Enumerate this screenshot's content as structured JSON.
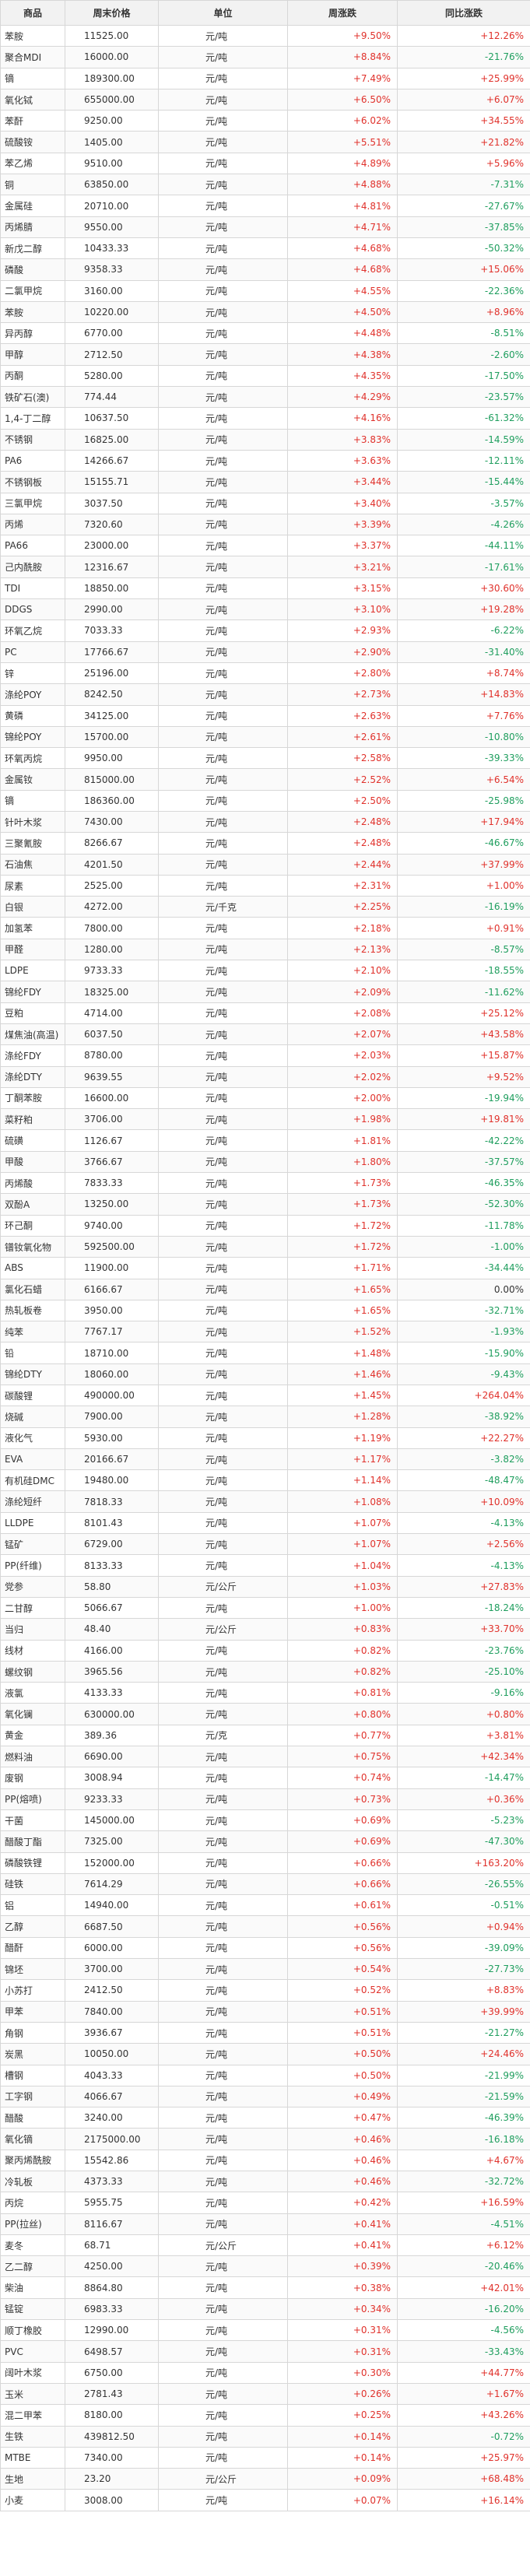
{
  "colors": {
    "up": "#e0312b",
    "down": "#1f9e5e",
    "flat": "#333333"
  },
  "headers": {
    "name": "商品",
    "price": "周末价格",
    "unit": "单位",
    "week": "周涨跌",
    "yoy": "同比涨跌"
  },
  "rows": [
    {
      "name": "苯胺",
      "price": "11525.00",
      "unit": "元/吨",
      "week": "+9.50%",
      "yoy": "+12.26%"
    },
    {
      "name": "聚合MDI",
      "price": "16000.00",
      "unit": "元/吨",
      "week": "+8.84%",
      "yoy": "-21.76%"
    },
    {
      "name": "镝",
      "price": "189300.00",
      "unit": "元/吨",
      "week": "+7.49%",
      "yoy": "+25.99%"
    },
    {
      "name": "氧化铽",
      "price": "655000.00",
      "unit": "元/吨",
      "week": "+6.50%",
      "yoy": "+6.07%"
    },
    {
      "name": "苯酐",
      "price": "9250.00",
      "unit": "元/吨",
      "week": "+6.02%",
      "yoy": "+34.55%"
    },
    {
      "name": "硫酸铵",
      "price": "1405.00",
      "unit": "元/吨",
      "week": "+5.51%",
      "yoy": "+21.82%"
    },
    {
      "name": "苯乙烯",
      "price": "9510.00",
      "unit": "元/吨",
      "week": "+4.89%",
      "yoy": "+5.96%"
    },
    {
      "name": "铜",
      "price": "63850.00",
      "unit": "元/吨",
      "week": "+4.88%",
      "yoy": "-7.31%"
    },
    {
      "name": "金属硅",
      "price": "20710.00",
      "unit": "元/吨",
      "week": "+4.81%",
      "yoy": "-27.67%"
    },
    {
      "name": "丙烯腈",
      "price": "9550.00",
      "unit": "元/吨",
      "week": "+4.71%",
      "yoy": "-37.85%"
    },
    {
      "name": "新戊二醇",
      "price": "10433.33",
      "unit": "元/吨",
      "week": "+4.68%",
      "yoy": "-50.32%"
    },
    {
      "name": "磷酸",
      "price": "9358.33",
      "unit": "元/吨",
      "week": "+4.68%",
      "yoy": "+15.06%"
    },
    {
      "name": "二氯甲烷",
      "price": "3160.00",
      "unit": "元/吨",
      "week": "+4.55%",
      "yoy": "-22.36%"
    },
    {
      "name": "苯胺",
      "price": "10220.00",
      "unit": "元/吨",
      "week": "+4.50%",
      "yoy": "+8.96%"
    },
    {
      "name": "异丙醇",
      "price": "6770.00",
      "unit": "元/吨",
      "week": "+4.48%",
      "yoy": "-8.51%"
    },
    {
      "name": "甲醇",
      "price": "2712.50",
      "unit": "元/吨",
      "week": "+4.38%",
      "yoy": "-2.60%"
    },
    {
      "name": "丙酮",
      "price": "5280.00",
      "unit": "元/吨",
      "week": "+4.35%",
      "yoy": "-17.50%"
    },
    {
      "name": "铁矿石(澳)",
      "price": "774.44",
      "unit": "元/吨",
      "week": "+4.29%",
      "yoy": "-23.57%"
    },
    {
      "name": "1,4-丁二醇",
      "price": "10637.50",
      "unit": "元/吨",
      "week": "+4.16%",
      "yoy": "-61.32%"
    },
    {
      "name": "不锈钢",
      "price": "16825.00",
      "unit": "元/吨",
      "week": "+3.83%",
      "yoy": "-14.59%"
    },
    {
      "name": "PA6",
      "price": "14266.67",
      "unit": "元/吨",
      "week": "+3.63%",
      "yoy": "-12.11%"
    },
    {
      "name": "不锈钢板",
      "price": "15155.71",
      "unit": "元/吨",
      "week": "+3.44%",
      "yoy": "-15.44%"
    },
    {
      "name": "三氯甲烷",
      "price": "3037.50",
      "unit": "元/吨",
      "week": "+3.40%",
      "yoy": "-3.57%"
    },
    {
      "name": "丙烯",
      "price": "7320.60",
      "unit": "元/吨",
      "week": "+3.39%",
      "yoy": "-4.26%"
    },
    {
      "name": "PA66",
      "price": "23000.00",
      "unit": "元/吨",
      "week": "+3.37%",
      "yoy": "-44.11%"
    },
    {
      "name": "己内酰胺",
      "price": "12316.67",
      "unit": "元/吨",
      "week": "+3.21%",
      "yoy": "-17.61%"
    },
    {
      "name": "TDI",
      "price": "18850.00",
      "unit": "元/吨",
      "week": "+3.15%",
      "yoy": "+30.60%"
    },
    {
      "name": "DDGS",
      "price": "2990.00",
      "unit": "元/吨",
      "week": "+3.10%",
      "yoy": "+19.28%"
    },
    {
      "name": "环氧乙烷",
      "price": "7033.33",
      "unit": "元/吨",
      "week": "+2.93%",
      "yoy": "-6.22%"
    },
    {
      "name": "PC",
      "price": "17766.67",
      "unit": "元/吨",
      "week": "+2.90%",
      "yoy": "-31.40%"
    },
    {
      "name": "锌",
      "price": "25196.00",
      "unit": "元/吨",
      "week": "+2.80%",
      "yoy": "+8.74%"
    },
    {
      "name": "涤纶POY",
      "price": "8242.50",
      "unit": "元/吨",
      "week": "+2.73%",
      "yoy": "+14.83%"
    },
    {
      "name": "黄磷",
      "price": "34125.00",
      "unit": "元/吨",
      "week": "+2.63%",
      "yoy": "+7.76%"
    },
    {
      "name": "锦纶POY",
      "price": "15700.00",
      "unit": "元/吨",
      "week": "+2.61%",
      "yoy": "-10.80%"
    },
    {
      "name": "环氧丙烷",
      "price": "9950.00",
      "unit": "元/吨",
      "week": "+2.58%",
      "yoy": "-39.33%"
    },
    {
      "name": "金属钕",
      "price": "815000.00",
      "unit": "元/吨",
      "week": "+2.52%",
      "yoy": "+6.54%"
    },
    {
      "name": "镝",
      "price": "186360.00",
      "unit": "元/吨",
      "week": "+2.50%",
      "yoy": "-25.98%"
    },
    {
      "name": "针叶木浆",
      "price": "7430.00",
      "unit": "元/吨",
      "week": "+2.48%",
      "yoy": "+17.94%"
    },
    {
      "name": "三聚氰胺",
      "price": "8266.67",
      "unit": "元/吨",
      "week": "+2.48%",
      "yoy": "-46.67%"
    },
    {
      "name": "石油焦",
      "price": "4201.50",
      "unit": "元/吨",
      "week": "+2.44%",
      "yoy": "+37.99%"
    },
    {
      "name": "尿素",
      "price": "2525.00",
      "unit": "元/吨",
      "week": "+2.31%",
      "yoy": "+1.00%"
    },
    {
      "name": "白银",
      "price": "4272.00",
      "unit": "元/千克",
      "week": "+2.25%",
      "yoy": "-16.19%"
    },
    {
      "name": "加氢苯",
      "price": "7800.00",
      "unit": "元/吨",
      "week": "+2.18%",
      "yoy": "+0.91%"
    },
    {
      "name": "甲醛",
      "price": "1280.00",
      "unit": "元/吨",
      "week": "+2.13%",
      "yoy": "-8.57%"
    },
    {
      "name": "LDPE",
      "price": "9733.33",
      "unit": "元/吨",
      "week": "+2.10%",
      "yoy": "-18.55%"
    },
    {
      "name": "锦纶FDY",
      "price": "18325.00",
      "unit": "元/吨",
      "week": "+2.09%",
      "yoy": "-11.62%"
    },
    {
      "name": "豆粕",
      "price": "4714.00",
      "unit": "元/吨",
      "week": "+2.08%",
      "yoy": "+25.12%"
    },
    {
      "name": "煤焦油(高温)",
      "price": "6037.50",
      "unit": "元/吨",
      "week": "+2.07%",
      "yoy": "+43.58%"
    },
    {
      "name": "涤纶FDY",
      "price": "8780.00",
      "unit": "元/吨",
      "week": "+2.03%",
      "yoy": "+15.87%"
    },
    {
      "name": "涤纶DTY",
      "price": "9639.55",
      "unit": "元/吨",
      "week": "+2.02%",
      "yoy": "+9.52%"
    },
    {
      "name": "丁酮苯胺",
      "price": "16600.00",
      "unit": "元/吨",
      "week": "+2.00%",
      "yoy": "-19.94%"
    },
    {
      "name": "菜籽粕",
      "price": "3706.00",
      "unit": "元/吨",
      "week": "+1.98%",
      "yoy": "+19.81%"
    },
    {
      "name": "硫磺",
      "price": "1126.67",
      "unit": "元/吨",
      "week": "+1.81%",
      "yoy": "-42.22%"
    },
    {
      "name": "甲酸",
      "price": "3766.67",
      "unit": "元/吨",
      "week": "+1.80%",
      "yoy": "-37.57%"
    },
    {
      "name": "丙烯酸",
      "price": "7833.33",
      "unit": "元/吨",
      "week": "+1.73%",
      "yoy": "-46.35%"
    },
    {
      "name": "双酚A",
      "price": "13250.00",
      "unit": "元/吨",
      "week": "+1.73%",
      "yoy": "-52.30%"
    },
    {
      "name": "环己酮",
      "price": "9740.00",
      "unit": "元/吨",
      "week": "+1.72%",
      "yoy": "-11.78%"
    },
    {
      "name": "镨钕氧化物",
      "price": "592500.00",
      "unit": "元/吨",
      "week": "+1.72%",
      "yoy": "-1.00%"
    },
    {
      "name": "ABS",
      "price": "11900.00",
      "unit": "元/吨",
      "week": "+1.71%",
      "yoy": "-34.44%"
    },
    {
      "name": "氯化石蜡",
      "price": "6166.67",
      "unit": "元/吨",
      "week": "+1.65%",
      "yoy": "0.00%"
    },
    {
      "name": "热轧板卷",
      "price": "3950.00",
      "unit": "元/吨",
      "week": "+1.65%",
      "yoy": "-32.71%"
    },
    {
      "name": "纯苯",
      "price": "7767.17",
      "unit": "元/吨",
      "week": "+1.52%",
      "yoy": "-1.93%"
    },
    {
      "name": "铅",
      "price": "18710.00",
      "unit": "元/吨",
      "week": "+1.48%",
      "yoy": "-15.90%"
    },
    {
      "name": "锦纶DTY",
      "price": "18060.00",
      "unit": "元/吨",
      "week": "+1.46%",
      "yoy": "-9.43%"
    },
    {
      "name": "碳酸锂",
      "price": "490000.00",
      "unit": "元/吨",
      "week": "+1.45%",
      "yoy": "+264.04%"
    },
    {
      "name": "烧碱",
      "price": "7900.00",
      "unit": "元/吨",
      "week": "+1.28%",
      "yoy": "-38.92%"
    },
    {
      "name": "液化气",
      "price": "5930.00",
      "unit": "元/吨",
      "week": "+1.19%",
      "yoy": "+22.27%"
    },
    {
      "name": "EVA",
      "price": "20166.67",
      "unit": "元/吨",
      "week": "+1.17%",
      "yoy": "-3.82%"
    },
    {
      "name": "有机硅DMC",
      "price": "19480.00",
      "unit": "元/吨",
      "week": "+1.14%",
      "yoy": "-48.47%"
    },
    {
      "name": "涤纶短纤",
      "price": "7818.33",
      "unit": "元/吨",
      "week": "+1.08%",
      "yoy": "+10.09%"
    },
    {
      "name": "LLDPE",
      "price": "8101.43",
      "unit": "元/吨",
      "week": "+1.07%",
      "yoy": "-4.13%"
    },
    {
      "name": "锰矿",
      "price": "6729.00",
      "unit": "元/吨",
      "week": "+1.07%",
      "yoy": "+2.56%"
    },
    {
      "name": "PP(纤维)",
      "price": "8133.33",
      "unit": "元/吨",
      "week": "+1.04%",
      "yoy": "-4.13%"
    },
    {
      "name": "党参",
      "price": "58.80",
      "unit": "元/公斤",
      "week": "+1.03%",
      "yoy": "+27.83%"
    },
    {
      "name": "二甘醇",
      "price": "5066.67",
      "unit": "元/吨",
      "week": "+1.00%",
      "yoy": "-18.24%"
    },
    {
      "name": "当归",
      "price": "48.40",
      "unit": "元/公斤",
      "week": "+0.83%",
      "yoy": "+33.70%"
    },
    {
      "name": "线材",
      "price": "4166.00",
      "unit": "元/吨",
      "week": "+0.82%",
      "yoy": "-23.76%"
    },
    {
      "name": "螺纹钢",
      "price": "3965.56",
      "unit": "元/吨",
      "week": "+0.82%",
      "yoy": "-25.10%"
    },
    {
      "name": "液氯",
      "price": "4133.33",
      "unit": "元/吨",
      "week": "+0.81%",
      "yoy": "-9.16%"
    },
    {
      "name": "氧化镧",
      "price": "630000.00",
      "unit": "元/吨",
      "week": "+0.80%",
      "yoy": "+0.80%"
    },
    {
      "name": "黄金",
      "price": "389.36",
      "unit": "元/克",
      "week": "+0.77%",
      "yoy": "+3.81%"
    },
    {
      "name": "燃料油",
      "price": "6690.00",
      "unit": "元/吨",
      "week": "+0.75%",
      "yoy": "+42.34%"
    },
    {
      "name": "废钢",
      "price": "3008.94",
      "unit": "元/吨",
      "week": "+0.74%",
      "yoy": "-14.47%"
    },
    {
      "name": "PP(熔喷)",
      "price": "9233.33",
      "unit": "元/吨",
      "week": "+0.73%",
      "yoy": "+0.36%"
    },
    {
      "name": "干菌",
      "price": "145000.00",
      "unit": "元/吨",
      "week": "+0.69%",
      "yoy": "-5.23%"
    },
    {
      "name": "醋酸丁酯",
      "price": "7325.00",
      "unit": "元/吨",
      "week": "+0.69%",
      "yoy": "-47.30%"
    },
    {
      "name": "磷酸铁锂",
      "price": "152000.00",
      "unit": "元/吨",
      "week": "+0.66%",
      "yoy": "+163.20%"
    },
    {
      "name": "硅铁",
      "price": "7614.29",
      "unit": "元/吨",
      "week": "+0.66%",
      "yoy": "-26.55%"
    },
    {
      "name": "铝",
      "price": "14940.00",
      "unit": "元/吨",
      "week": "+0.61%",
      "yoy": "-0.51%"
    },
    {
      "name": "乙醇",
      "price": "6687.50",
      "unit": "元/吨",
      "week": "+0.56%",
      "yoy": "+0.94%"
    },
    {
      "name": "醋酐",
      "price": "6000.00",
      "unit": "元/吨",
      "week": "+0.56%",
      "yoy": "-39.09%"
    },
    {
      "name": "锦坯",
      "price": "3700.00",
      "unit": "元/吨",
      "week": "+0.54%",
      "yoy": "-27.73%"
    },
    {
      "name": "小苏打",
      "price": "2412.50",
      "unit": "元/吨",
      "week": "+0.52%",
      "yoy": "+8.83%"
    },
    {
      "name": "甲苯",
      "price": "7840.00",
      "unit": "元/吨",
      "week": "+0.51%",
      "yoy": "+39.99%"
    },
    {
      "name": "角钢",
      "price": "3936.67",
      "unit": "元/吨",
      "week": "+0.51%",
      "yoy": "-21.27%"
    },
    {
      "name": "炭黑",
      "price": "10050.00",
      "unit": "元/吨",
      "week": "+0.50%",
      "yoy": "+24.46%"
    },
    {
      "name": "槽钢",
      "price": "4043.33",
      "unit": "元/吨",
      "week": "+0.50%",
      "yoy": "-21.99%"
    },
    {
      "name": "工字钢",
      "price": "4066.67",
      "unit": "元/吨",
      "week": "+0.49%",
      "yoy": "-21.59%"
    },
    {
      "name": "醋酸",
      "price": "3240.00",
      "unit": "元/吨",
      "week": "+0.47%",
      "yoy": "-46.39%"
    },
    {
      "name": "氧化镝",
      "price": "2175000.00",
      "unit": "元/吨",
      "week": "+0.46%",
      "yoy": "-16.18%"
    },
    {
      "name": "聚丙烯酰胺",
      "price": "15542.86",
      "unit": "元/吨",
      "week": "+0.46%",
      "yoy": "+4.67%"
    },
    {
      "name": "冷轧板",
      "price": "4373.33",
      "unit": "元/吨",
      "week": "+0.46%",
      "yoy": "-32.72%"
    },
    {
      "name": "丙烷",
      "price": "5955.75",
      "unit": "元/吨",
      "week": "+0.42%",
      "yoy": "+16.59%"
    },
    {
      "name": "PP(拉丝)",
      "price": "8116.67",
      "unit": "元/吨",
      "week": "+0.41%",
      "yoy": "-4.51%"
    },
    {
      "name": "麦冬",
      "price": "68.71",
      "unit": "元/公斤",
      "week": "+0.41%",
      "yoy": "+6.12%"
    },
    {
      "name": "乙二醇",
      "price": "4250.00",
      "unit": "元/吨",
      "week": "+0.39%",
      "yoy": "-20.46%"
    },
    {
      "name": "柴油",
      "price": "8864.80",
      "unit": "元/吨",
      "week": "+0.38%",
      "yoy": "+42.01%"
    },
    {
      "name": "锰锭",
      "price": "6983.33",
      "unit": "元/吨",
      "week": "+0.34%",
      "yoy": "-16.20%"
    },
    {
      "name": "顺丁橡胶",
      "price": "12990.00",
      "unit": "元/吨",
      "week": "+0.31%",
      "yoy": "-4.56%"
    },
    {
      "name": "PVC",
      "price": "6498.57",
      "unit": "元/吨",
      "week": "+0.31%",
      "yoy": "-33.43%"
    },
    {
      "name": "阔叶木浆",
      "price": "6750.00",
      "unit": "元/吨",
      "week": "+0.30%",
      "yoy": "+44.77%"
    },
    {
      "name": "玉米",
      "price": "2781.43",
      "unit": "元/吨",
      "week": "+0.26%",
      "yoy": "+1.67%"
    },
    {
      "name": "混二甲苯",
      "price": "8180.00",
      "unit": "元/吨",
      "week": "+0.25%",
      "yoy": "+43.26%"
    },
    {
      "name": "生铁",
      "price": "439812.50",
      "unit": "元/吨",
      "week": "+0.14%",
      "yoy": "-0.72%"
    },
    {
      "name": "MTBE",
      "price": "7340.00",
      "unit": "元/吨",
      "week": "+0.14%",
      "yoy": "+25.97%"
    },
    {
      "name": "生地",
      "price": "23.20",
      "unit": "元/公斤",
      "week": "+0.09%",
      "yoy": "+68.48%"
    },
    {
      "name": "小麦",
      "price": "3008.00",
      "unit": "元/吨",
      "week": "+0.07%",
      "yoy": "+16.14%"
    }
  ]
}
